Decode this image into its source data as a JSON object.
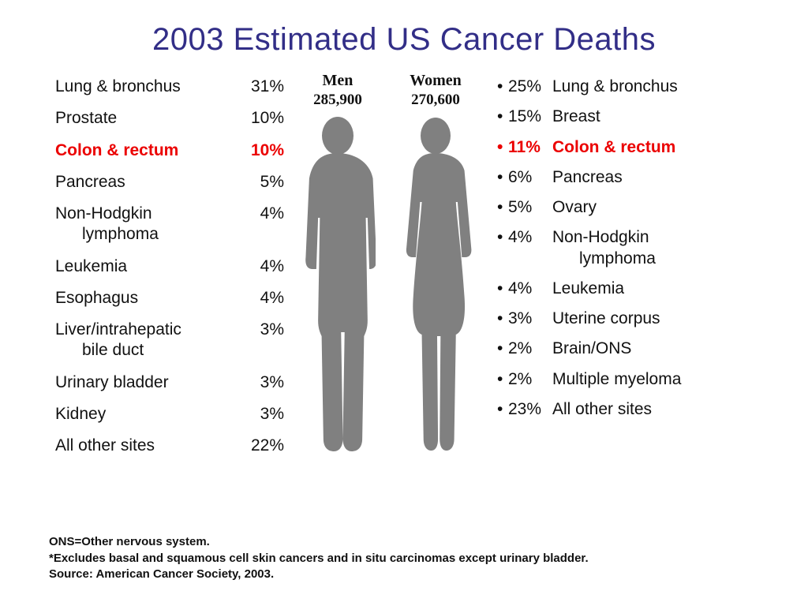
{
  "title": "2003 Estimated US Cancer Deaths",
  "title_color": "#322e87",
  "highlight_color": "#eb0000",
  "silhouette_color": "#808080",
  "men": {
    "label": "Men",
    "count": "285,900",
    "rows": [
      {
        "label": "Lung & bronchus",
        "pct": "31%",
        "highlight": false
      },
      {
        "label": "Prostate",
        "pct": "10%",
        "highlight": false
      },
      {
        "label": "Colon & rectum",
        "pct": "10%",
        "highlight": true
      },
      {
        "label": "Pancreas",
        "pct": "5%",
        "highlight": false
      },
      {
        "label": "Non-Hodgkin",
        "sub": "lymphoma",
        "pct": "4%",
        "highlight": false
      },
      {
        "label": "Leukemia",
        "pct": "4%",
        "highlight": false
      },
      {
        "label": "Esophagus",
        "pct": "4%",
        "highlight": false
      },
      {
        "label": "Liver/intrahepatic",
        "sub": "bile duct",
        "pct": "3%",
        "highlight": false
      },
      {
        "label": "Urinary bladder",
        "pct": "3%",
        "highlight": false
      },
      {
        "label": "Kidney",
        "pct": "3%",
        "highlight": false
      },
      {
        "label": "All other sites",
        "pct": "22%",
        "highlight": false
      }
    ]
  },
  "women": {
    "label": "Women",
    "count": "270,600",
    "rows": [
      {
        "pct": "25%",
        "label": "Lung & bronchus",
        "highlight": false
      },
      {
        "pct": "15%",
        "label": "Breast",
        "highlight": false
      },
      {
        "pct": "11%",
        "label": "Colon & rectum",
        "highlight": true
      },
      {
        "pct": "6%",
        "label": "Pancreas",
        "highlight": false
      },
      {
        "pct": "5%",
        "label": "Ovary",
        "highlight": false
      },
      {
        "pct": "4%",
        "label": "Non-Hodgkin",
        "sub": "lymphoma",
        "highlight": false
      },
      {
        "pct": "4%",
        "label": "Leukemia",
        "highlight": false
      },
      {
        "pct": "3%",
        "label": "Uterine corpus",
        "highlight": false
      },
      {
        "pct": "2%",
        "label": "Brain/ONS",
        "highlight": false
      },
      {
        "pct": "2%",
        "label": "Multiple myeloma",
        "highlight": false
      },
      {
        "pct": "23%",
        "label": "All other sites",
        "highlight": false
      }
    ]
  },
  "footnotes": [
    "ONS=Other nervous system.",
    "*Excludes basal and squamous cell skin cancers and in situ carcinomas except urinary bladder.",
    "Source: American Cancer Society, 2003."
  ]
}
